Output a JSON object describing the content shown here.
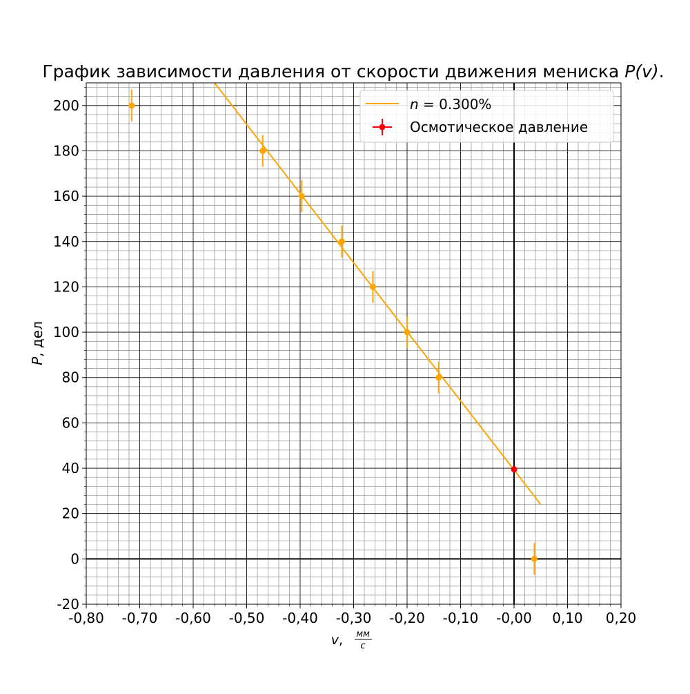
{
  "chart_data": {
    "type": "scatter",
    "title": "График зависимости давления от скорости движения мениска ",
    "title_math": "P(v)",
    "title_end": ".",
    "xlabel": "v",
    "xlabel_unit_sep": ", ",
    "xlabel_unit_num": "мм",
    "xlabel_unit_den": "с",
    "ylabel": "P",
    "ylabel_unit": ", дел",
    "xlim": [
      -0.8,
      0.2
    ],
    "ylim": [
      -20,
      210
    ],
    "x_ticks": [
      -0.8,
      -0.7,
      -0.6,
      -0.5,
      -0.4,
      -0.3,
      -0.2,
      -0.1,
      0.0,
      0.1,
      0.2
    ],
    "x_tick_labels": [
      "-0,80",
      "-0,70",
      "-0,60",
      "-0,50",
      "-0,40",
      "-0,30",
      "-0,20",
      "-0,10",
      "-0,00",
      "0,10",
      "0,20"
    ],
    "y_ticks": [
      -20,
      0,
      20,
      40,
      60,
      80,
      100,
      120,
      140,
      160,
      180,
      200
    ],
    "y_tick_labels": [
      "-20",
      "0",
      "20",
      "40",
      "60",
      "80",
      "100",
      "120",
      "140",
      "160",
      "180",
      "200"
    ],
    "grid": "major and minor",
    "legend_position": "top-right",
    "series": [
      {
        "name_math": "n",
        "name": " = 0.300%",
        "kind": "line",
        "color": "#ffa500",
        "x": [
          -0.56,
          0.05
        ],
        "y": [
          210,
          24
        ]
      },
      {
        "kind": "errorbar",
        "color": "#ffa500",
        "points": [
          {
            "x": -0.715,
            "y": 200,
            "yerr": 7,
            "xerr": 0
          },
          {
            "x": -0.47,
            "y": 180,
            "yerr": 7,
            "xerr": 0.007
          },
          {
            "x": -0.397,
            "y": 160,
            "yerr": 7,
            "xerr": 0
          },
          {
            "x": -0.322,
            "y": 140,
            "yerr": 7,
            "xerr": 0.007
          },
          {
            "x": -0.264,
            "y": 120,
            "yerr": 7,
            "xerr": 0.006
          },
          {
            "x": -0.2,
            "y": 100,
            "yerr": 7,
            "xerr": 0
          },
          {
            "x": -0.141,
            "y": 80,
            "yerr": 7,
            "xerr": 0
          },
          {
            "x": 0.038,
            "y": 0,
            "yerr": 7,
            "xerr": 0
          }
        ]
      },
      {
        "name": "Осмотическое давление",
        "kind": "errorbar",
        "color": "#ff0000",
        "points": [
          {
            "x": 0.0,
            "y": 39.5,
            "yerr": 0,
            "xerr": 0
          }
        ]
      }
    ]
  }
}
